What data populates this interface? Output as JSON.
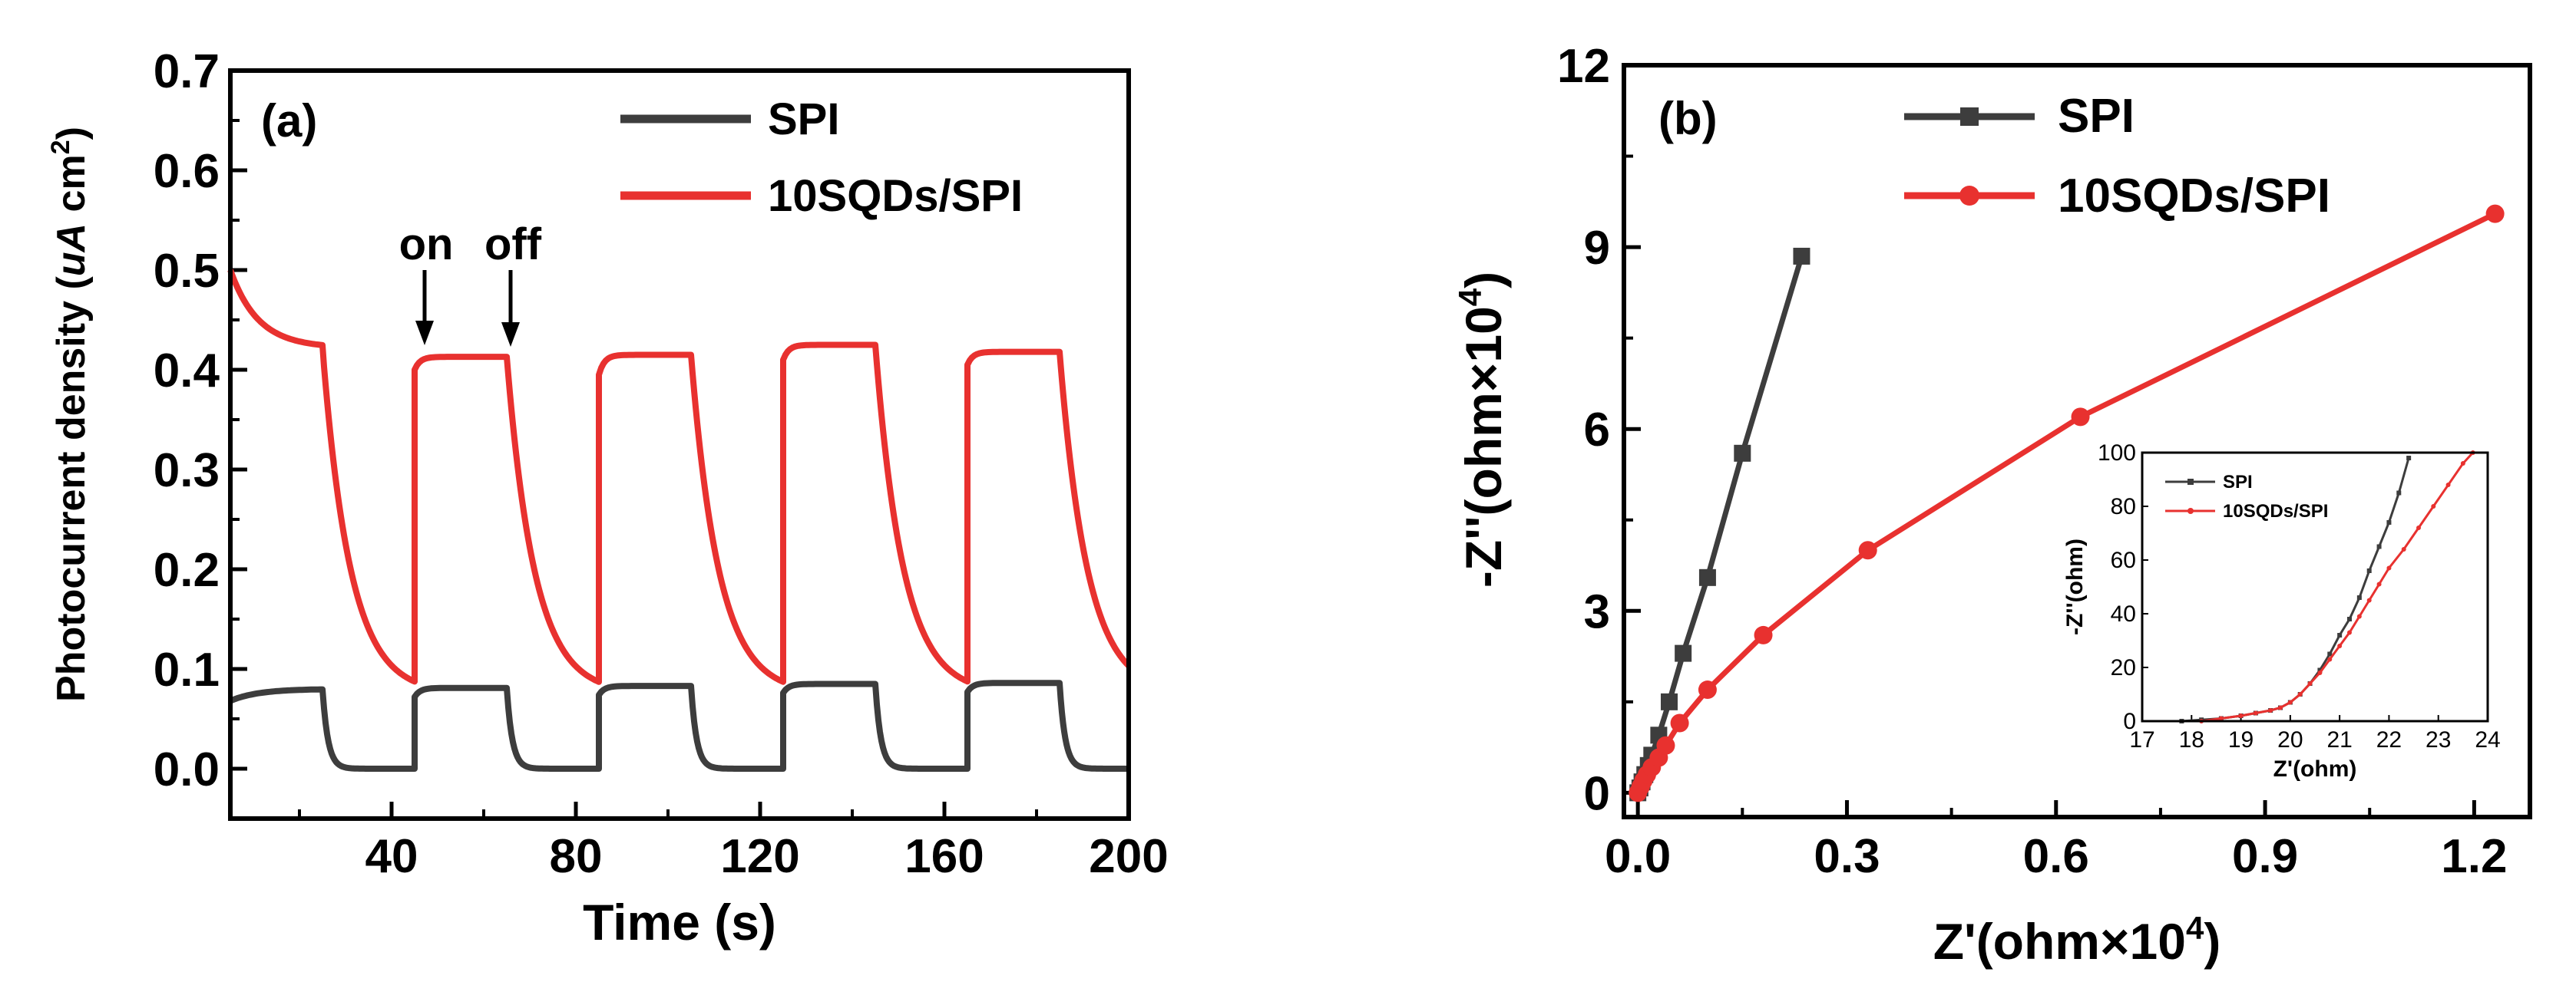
{
  "colors": {
    "spi": "#3d3d3d",
    "sqd": "#e8312f",
    "axis": "#000000"
  },
  "chart_data": [
    {
      "panel": "(a)",
      "type": "line",
      "xlabel": "Time (s)",
      "ylabel_main": "Photocurrent density (",
      "ylabel_unit": "uA",
      "ylabel_rest": " cm",
      "ylabel_sup": "2",
      "ylabel_close": ")",
      "xlim": [
        5,
        200
      ],
      "ylim": [
        -0.05,
        0.7
      ],
      "xticks": [
        "40",
        "80",
        "120",
        "160",
        "200"
      ],
      "yticks": [
        "0.0",
        "0.1",
        "0.2",
        "0.3",
        "0.4",
        "0.5",
        "0.6",
        "0.7"
      ],
      "annotations": {
        "on": "on",
        "off": "off"
      },
      "series": [
        {
          "name": "SPI",
          "color": "#3d3d3d",
          "cycles": [
            {
              "on": 5,
              "off": 25,
              "i0": 0.068,
              "i1": 0.08
            },
            {
              "on": 45,
              "off": 65,
              "i0": 0.072,
              "i1": 0.081
            },
            {
              "on": 85,
              "off": 105,
              "i0": 0.074,
              "i1": 0.083
            },
            {
              "on": 125,
              "off": 145,
              "i0": 0.076,
              "i1": 0.085
            },
            {
              "on": 165,
              "off": 185,
              "i0": 0.077,
              "i1": 0.086
            }
          ],
          "dark_level": 0.0
        },
        {
          "name": "10SQDs/SPI",
          "color": "#e8312f",
          "cycles": [
            {
              "on": 5,
              "off": 25,
              "i0": 0.5,
              "i1": 0.422
            },
            {
              "on": 45,
              "off": 65,
              "i0": 0.4,
              "i1": 0.413
            },
            {
              "on": 85,
              "off": 105,
              "i0": 0.395,
              "i1": 0.415
            },
            {
              "on": 125,
              "off": 145,
              "i0": 0.41,
              "i1": 0.425
            },
            {
              "on": 165,
              "off": 185,
              "i0": 0.405,
              "i1": 0.418
            }
          ],
          "dark_level": 0.075
        }
      ]
    },
    {
      "panel": "(b)",
      "type": "scatter",
      "xlabel": "Z'(ohm×10",
      "xlabel_sup": "4",
      "xlabel_close": ")",
      "ylabel": "-Z''(ohm×10",
      "ylabel_sup": "4",
      "ylabel_close": ")",
      "xlim": [
        -0.02,
        1.28
      ],
      "ylim": [
        -0.4,
        12
      ],
      "xticks": [
        "0.0",
        "0.3",
        "0.6",
        "0.9",
        "1.2"
      ],
      "yticks": [
        "0",
        "3",
        "6",
        "9",
        "12"
      ],
      "series": [
        {
          "name": "SPI",
          "marker": "square",
          "color": "#3d3d3d",
          "x": [
            0.0,
            0.003,
            0.006,
            0.01,
            0.015,
            0.02,
            0.03,
            0.045,
            0.065,
            0.1,
            0.15,
            0.235
          ],
          "y": [
            0.0,
            0.08,
            0.18,
            0.3,
            0.45,
            0.62,
            0.95,
            1.5,
            2.3,
            3.55,
            5.6,
            8.85
          ]
        },
        {
          "name": "10SQDs/SPI",
          "marker": "circle",
          "color": "#e8312f",
          "x": [
            0.0,
            0.004,
            0.008,
            0.013,
            0.02,
            0.03,
            0.04,
            0.06,
            0.1,
            0.18,
            0.33,
            0.635,
            1.23
          ],
          "y": [
            0.0,
            0.1,
            0.2,
            0.3,
            0.42,
            0.58,
            0.78,
            1.15,
            1.7,
            2.6,
            4.0,
            6.2,
            9.55
          ]
        }
      ],
      "inset": {
        "xlabel": "Z'(ohm)",
        "ylabel": "-Z''(ohm)",
        "xlim": [
          17,
          24
        ],
        "ylim": [
          0,
          100
        ],
        "xticks": [
          "17",
          "18",
          "19",
          "20",
          "21",
          "22",
          "23",
          "24"
        ],
        "yticks": [
          "0",
          "20",
          "40",
          "60",
          "80",
          "100"
        ],
        "series": [
          {
            "name": "SPI",
            "color": "#3d3d3d",
            "x": [
              17.8,
              18.2,
              18.6,
              19.0,
              19.3,
              19.6,
              19.8,
              20.0,
              20.2,
              20.4,
              20.6,
              20.8,
              21.0,
              21.2,
              21.4,
              21.6,
              21.8,
              22.0,
              22.2,
              22.4
            ],
            "y": [
              0,
              0.5,
              1,
              2,
              3,
              4,
              5,
              7,
              10,
              14,
              19,
              25,
              32,
              38,
              46,
              56,
              65,
              74,
              85,
              98
            ]
          },
          {
            "name": "10SQDs/SPI",
            "color": "#e8312f",
            "x": [
              18.2,
              18.6,
              19.0,
              19.3,
              19.6,
              19.8,
              20.0,
              20.2,
              20.4,
              20.6,
              20.8,
              21.0,
              21.2,
              21.4,
              21.6,
              21.8,
              22.0,
              22.3,
              22.6,
              22.9,
              23.2,
              23.5,
              23.7
            ],
            "y": [
              0,
              1,
              2,
              3,
              4,
              5,
              7,
              10,
              14,
              18,
              23,
              28,
              33,
              39,
              45,
              51,
              57,
              64,
              72,
              80,
              88,
              96,
              100
            ]
          }
        ]
      }
    }
  ]
}
